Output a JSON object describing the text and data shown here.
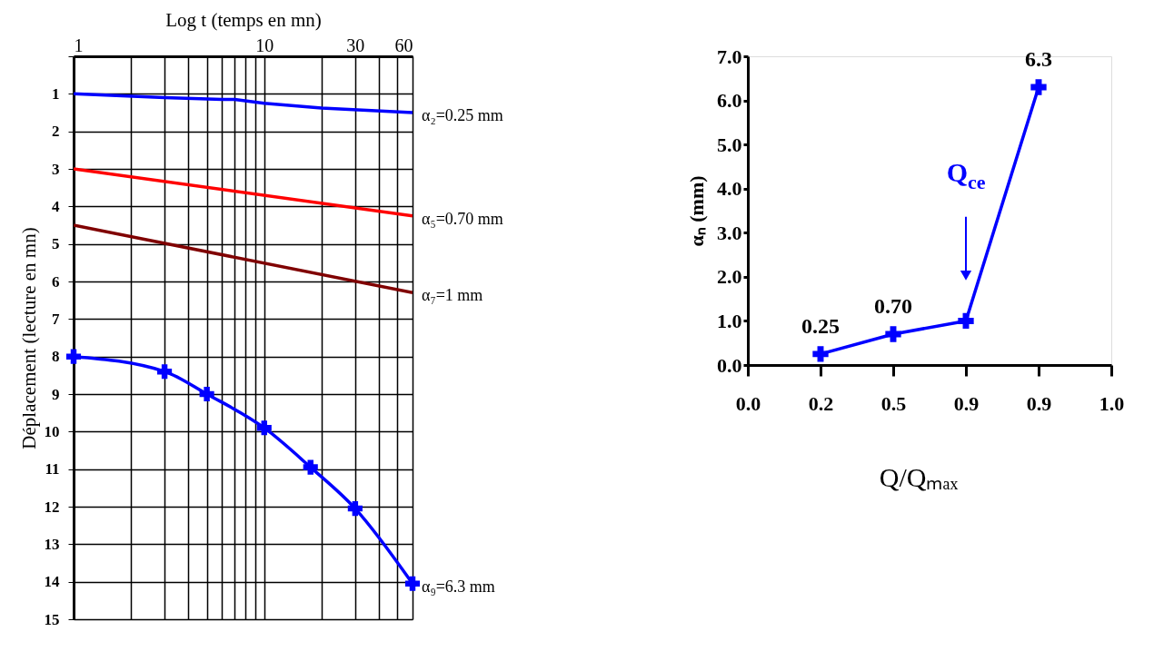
{
  "chart_data": [
    {
      "type": "line",
      "xlabel": "Log t (temps en mn)",
      "ylabel": "Déplacement (lecture en mn)",
      "log": "x",
      "xlim": [
        1,
        60
      ],
      "xticks": [
        1,
        {
          "value": 2,
          "label": null
        },
        {
          "value": 3,
          "label": null
        },
        {
          "value": 4,
          "label": null
        },
        {
          "value": 5,
          "label": null
        },
        {
          "value": 6,
          "label": null
        },
        {
          "value": 7,
          "label": null
        },
        {
          "value": 8,
          "label": null
        },
        {
          "value": 9,
          "label": null
        },
        10,
        {
          "value": 20,
          "label": null
        },
        30,
        {
          "value": 40,
          "label": null
        },
        {
          "value": 50,
          "label": null
        },
        60
      ],
      "ylim": [
        15,
        0
      ],
      "yticks": [
        {
          "value": 0,
          "label": null
        },
        1,
        2,
        3,
        4,
        5,
        6,
        7,
        8,
        9,
        10,
        11,
        12,
        13,
        14,
        15
      ],
      "grid": true,
      "series": [
        {
          "name": "α₂=0.25 mm",
          "color": "#0000ff",
          "marker": "none",
          "x": [
            1,
            3,
            6,
            7,
            10,
            20,
            60
          ],
          "values": [
            1,
            1.1,
            1.15,
            1.15,
            1.25,
            1.38,
            1.5
          ]
        },
        {
          "name": "α₅=0.70 mm",
          "color": "#ff0000",
          "marker": "none",
          "x": [
            1,
            60
          ],
          "values": [
            3,
            4.25
          ]
        },
        {
          "name": "α₇=1 mm",
          "color": "#800000",
          "marker": "none",
          "x": [
            1,
            60
          ],
          "values": [
            4.5,
            6.3
          ]
        },
        {
          "name": "α₉=6.3 mm",
          "color": "#0000ff",
          "marker": "cross",
          "x": [
            1,
            3,
            5,
            10,
            17.5,
            30,
            60
          ],
          "values": [
            8,
            8.4,
            9,
            9.9,
            10.95,
            12.05,
            14.05
          ]
        }
      ]
    },
    {
      "type": "line",
      "xlabel": "Q/Qₘₐₓ",
      "ylabel": "αₙ (mm)",
      "categories": [
        "0.0",
        "0.2",
        "0.5",
        "0.9",
        "0.9",
        "1.0"
      ],
      "ylim": [
        0,
        7
      ],
      "yticks": [
        {
          "value": 0,
          "label": "0.0"
        },
        {
          "value": 1,
          "label": "1.0"
        },
        {
          "value": 2,
          "label": "2.0"
        },
        {
          "value": 3,
          "label": "3.0"
        },
        {
          "value": 4,
          "label": "4.0"
        },
        {
          "value": 5,
          "label": "5.0"
        },
        {
          "value": 6,
          "label": "6.0"
        },
        {
          "value": 7,
          "label": "7.0"
        }
      ],
      "grid": false,
      "marker": "cross",
      "series": [
        {
          "color": "#0000ff",
          "values": [
            null,
            0.25,
            0.7,
            1.0,
            6.3,
            null
          ],
          "value_labels": [
            null,
            "0.25",
            "0.70",
            null,
            "6.3",
            null
          ]
        }
      ],
      "annotations": [
        "Q$_{ce}$"
      ]
    }
  ]
}
